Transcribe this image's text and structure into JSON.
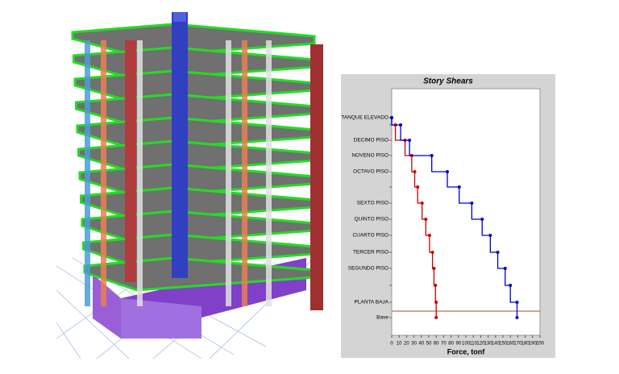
{
  "chart_data": {
    "type": "step",
    "title": "Story Shears",
    "x_label": "Force, tonf",
    "categories": [
      "TANQUE ELEVADO",
      null,
      "DECIMO PISO",
      "NOVENO PISO",
      "OCTAVO PISO",
      null,
      "SEXTO PISO",
      "QUINTO PISO",
      "CUARTO PISO",
      "TERCER PISO",
      "SEGUNDO PISO",
      null,
      "PLANTA BAJA",
      "Base"
    ],
    "series": [
      {
        "color": "#cc0000",
        "values": [
          0,
          5,
          18,
          27,
          31,
          35,
          41,
          46,
          51,
          55,
          57,
          59,
          60,
          60
        ]
      },
      {
        "color": "#0000cc",
        "values": [
          0,
          12,
          24,
          54,
          75,
          91,
          108,
          122,
          133,
          143,
          153,
          160,
          169,
          169
        ]
      }
    ],
    "xlim": [
      0,
      200
    ],
    "xticks": [
      0,
      10,
      20,
      30,
      40,
      50,
      60,
      70,
      80,
      90,
      100,
      110,
      120,
      130,
      140,
      150,
      160,
      170,
      180,
      190,
      200
    ]
  }
}
